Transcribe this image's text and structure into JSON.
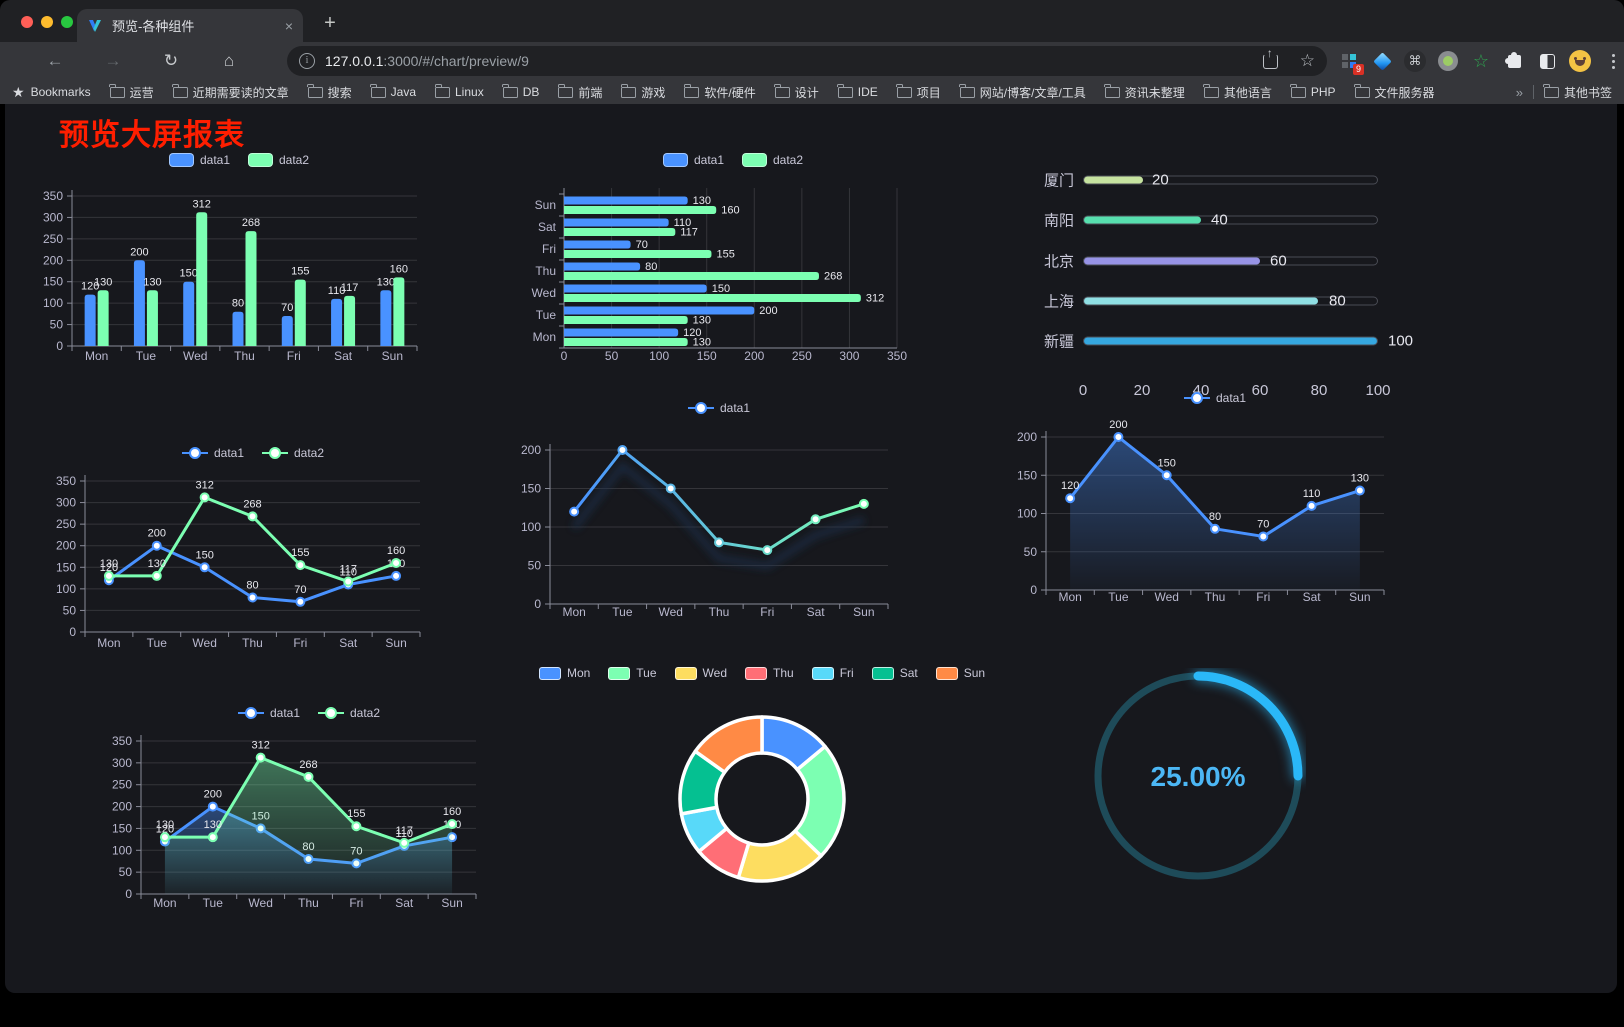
{
  "browser": {
    "tab_title": "预览-各种组件",
    "close_tab": "×",
    "new_tab": "+",
    "url_host": "127.0.0.1",
    "url_rest": ":3000/#/chart/preview/9",
    "extensions_badge": "9",
    "bookmarks_label": "Bookmarks",
    "bookmark_folders": [
      "运营",
      "近期需要读的文章",
      "搜索",
      "Java",
      "Linux",
      "DB",
      "前端",
      "游戏",
      "软件/硬件",
      "设计",
      "IDE",
      "项目",
      "网站/博客/文章/工具",
      "资讯未整理",
      "其他语言",
      "PHP",
      "文件服务器"
    ],
    "overflow_chevron": "»",
    "other_bookmarks": "其他书签"
  },
  "page": {
    "title": "预览大屏报表"
  },
  "chart_data": [
    {
      "id": "c1",
      "type": "bar",
      "categories": [
        "Mon",
        "Tue",
        "Wed",
        "Thu",
        "Fri",
        "Sat",
        "Sun"
      ],
      "series": [
        {
          "name": "data1",
          "color": "#4992ff",
          "values": [
            120,
            200,
            150,
            80,
            70,
            110,
            130
          ]
        },
        {
          "name": "data2",
          "color": "#7cffb2",
          "values": [
            130,
            130,
            312,
            268,
            155,
            117,
            160
          ]
        }
      ],
      "ylim": [
        0,
        350
      ],
      "yticks": [
        0,
        50,
        100,
        150,
        200,
        250,
        300,
        350
      ],
      "value_labels": true,
      "grid": true,
      "legend_position": "top"
    },
    {
      "id": "c2",
      "type": "bar-horizontal",
      "categories_top_to_bottom": [
        "Sun",
        "Sat",
        "Fri",
        "Thu",
        "Wed",
        "Tue",
        "Mon"
      ],
      "series": [
        {
          "name": "data1",
          "color": "#4992ff",
          "values": [
            130,
            110,
            70,
            80,
            150,
            200,
            120
          ]
        },
        {
          "name": "data2",
          "color": "#7cffb2",
          "values": [
            160,
            117,
            155,
            268,
            312,
            130,
            130
          ]
        }
      ],
      "xlim": [
        0,
        350
      ],
      "xticks": [
        0,
        50,
        100,
        150,
        200,
        250,
        300,
        350
      ],
      "value_labels": true,
      "grid": true,
      "legend_position": "top"
    },
    {
      "id": "c3",
      "type": "progress-bars",
      "items": [
        {
          "label": "厦门",
          "value": 20,
          "color": "#c6e3a0"
        },
        {
          "label": "南阳",
          "value": 40,
          "color": "#57dfae"
        },
        {
          "label": "北京",
          "value": 60,
          "color": "#9793e6"
        },
        {
          "label": "上海",
          "value": 80,
          "color": "#8fdfe4"
        },
        {
          "label": "新疆",
          "value": 100,
          "color": "#36a7e0"
        }
      ],
      "xlim": [
        0,
        100
      ],
      "xticks": [
        0,
        20,
        40,
        60,
        80,
        100
      ]
    },
    {
      "id": "c4",
      "type": "line",
      "categories": [
        "Mon",
        "Tue",
        "Wed",
        "Thu",
        "Fri",
        "Sat",
        "Sun"
      ],
      "series": [
        {
          "name": "data1",
          "color": "#4992ff",
          "values": [
            120,
            200,
            150,
            80,
            70,
            110,
            130
          ]
        },
        {
          "name": "data2",
          "color": "#7cffb2",
          "values": [
            130,
            130,
            312,
            268,
            155,
            117,
            160
          ]
        }
      ],
      "ylim": [
        0,
        350
      ],
      "yticks": [
        0,
        50,
        100,
        150,
        200,
        250,
        300,
        350
      ],
      "value_labels": true,
      "markers": true,
      "legend_position": "top"
    },
    {
      "id": "c5",
      "type": "line",
      "categories": [
        "Mon",
        "Tue",
        "Wed",
        "Thu",
        "Fri",
        "Sat",
        "Sun"
      ],
      "series": [
        {
          "name": "data1",
          "color_gradient": [
            "#4992ff",
            "#7cffb2"
          ],
          "values": [
            120,
            200,
            150,
            80,
            70,
            110,
            130
          ]
        }
      ],
      "ylim": [
        0,
        200
      ],
      "yticks": [
        0,
        50,
        100,
        150,
        200
      ],
      "value_labels": false,
      "markers": true,
      "shadow": true,
      "legend_position": "top"
    },
    {
      "id": "c6",
      "type": "area",
      "categories": [
        "Mon",
        "Tue",
        "Wed",
        "Thu",
        "Fri",
        "Sat",
        "Sun"
      ],
      "series": [
        {
          "name": "data1",
          "color": "#4992ff",
          "values": [
            120,
            200,
            150,
            80,
            70,
            110,
            130
          ],
          "fill": true
        }
      ],
      "ylim": [
        0,
        200
      ],
      "yticks": [
        0,
        50,
        100,
        150,
        200
      ],
      "value_labels": true,
      "markers": true,
      "legend_position": "top"
    },
    {
      "id": "c7",
      "type": "area",
      "categories": [
        "Mon",
        "Tue",
        "Wed",
        "Thu",
        "Fri",
        "Sat",
        "Sun"
      ],
      "series": [
        {
          "name": "data1",
          "color": "#4992ff",
          "values": [
            120,
            200,
            150,
            80,
            70,
            110,
            130
          ],
          "fill": true
        },
        {
          "name": "data2",
          "color": "#7cffb2",
          "values": [
            130,
            130,
            312,
            268,
            155,
            117,
            160
          ],
          "fill": true
        }
      ],
      "ylim": [
        0,
        350
      ],
      "yticks": [
        0,
        50,
        100,
        150,
        200,
        250,
        300,
        350
      ],
      "value_labels": true,
      "markers": true,
      "legend_position": "top"
    },
    {
      "id": "c8",
      "type": "pie",
      "categories": [
        "Mon",
        "Tue",
        "Wed",
        "Thu",
        "Fri",
        "Sat",
        "Sun"
      ],
      "values": [
        120,
        200,
        150,
        80,
        70,
        110,
        130
      ],
      "colors": [
        "#4992ff",
        "#7cffb2",
        "#fddd60",
        "#ff6e76",
        "#58d9f9",
        "#05c091",
        "#ff8a45"
      ],
      "donut": true,
      "legend_position": "top"
    },
    {
      "id": "c9",
      "type": "gauge",
      "percent": 25,
      "value_label": "25.00%",
      "color": "#2ab8f8",
      "track_color": "#1e4b59",
      "text_color": "#4cb7f5"
    }
  ]
}
